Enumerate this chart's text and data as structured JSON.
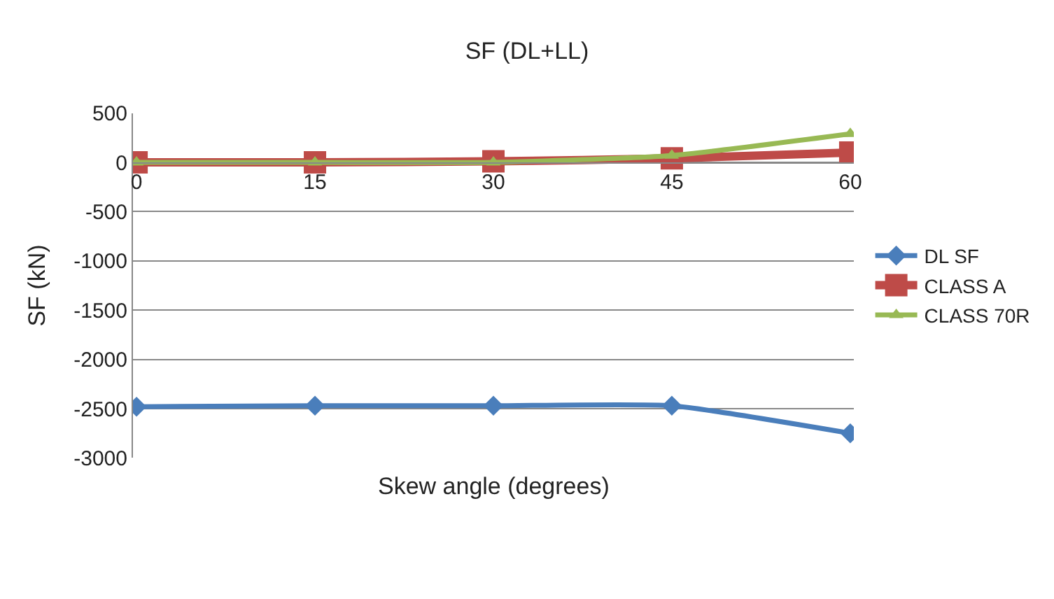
{
  "chart_data": {
    "type": "line",
    "title": "SF (DL+LL)",
    "xlabel": "Skew angle (degrees)",
    "ylabel": "SF (kN)",
    "categories": [
      "0",
      "15",
      "30",
      "45",
      "60"
    ],
    "series": [
      {
        "name": "DL SF",
        "color": "#4a7ebb",
        "marker": "diamond",
        "values": [
          -2480,
          -2470,
          -2470,
          -2470,
          -2750
        ]
      },
      {
        "name": "CLASS A",
        "color": "#be4b48",
        "marker": "square",
        "values": [
          0,
          0,
          10,
          40,
          100
        ]
      },
      {
        "name": "CLASS 70R",
        "color": "#98b954",
        "marker": "triangle",
        "values": [
          0,
          0,
          0,
          70,
          290
        ]
      }
    ],
    "ylim": [
      -3000,
      500
    ],
    "yticks": [
      -3000,
      -2500,
      -2000,
      -1500,
      -1000,
      -500,
      0,
      500
    ],
    "grid": "y",
    "legend": "right",
    "line_style": "solid"
  }
}
